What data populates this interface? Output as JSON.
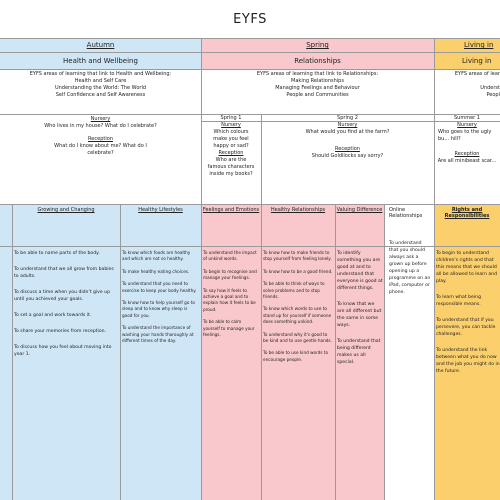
{
  "title": "EYFS",
  "seasons": {
    "autumn": "Autumn",
    "spring": "Spring",
    "living": "Living in"
  },
  "themes": {
    "autumn": "Health and Wellbeing",
    "spring": "Relationships",
    "summer": "Living in"
  },
  "autumn_areas": {
    "heading": "EYFS areas of learning that link to Health and Wellbeing:",
    "items": [
      "Health and Self Care",
      "Understanding the World: The World",
      "Self Confidence and Self Awareness"
    ]
  },
  "spring_areas": {
    "heading": "EYFS areas of learning that link to Relationships:",
    "items": [
      "Making Relationships",
      "Managing Feelings and Behaviour",
      "People and Communities"
    ]
  },
  "summer_areas": {
    "heading": "EYFS areas of lear",
    "items": [
      "Underst",
      "Peopl"
    ]
  },
  "autumn_questions": {
    "nursery_label": "Nursery",
    "nursery_q": "Who lives in my house? What do I celebrate?",
    "reception_label": "Reception",
    "reception_q": "What do I know about me? What do I celebrate?"
  },
  "spring1": {
    "label": "Spring 1",
    "nursery_label": "Nursery",
    "nursery_q": "Which colours make you feel happy or sad?",
    "reception_label": "Reception",
    "reception_q": "Who are the famous characters inside my books?"
  },
  "spring2": {
    "label": "Spring 2",
    "nursery_label": "Nursery",
    "nursery_q": "What would you find at the farm?",
    "reception_label": "Reception",
    "reception_q": "Should Goldilocks say sorry?"
  },
  "summer1": {
    "label": "Summer 1",
    "nursery_label": "Nursery",
    "nursery_q": "Who goes to the ugly bu... hill?",
    "reception_label": "Reception",
    "reception_q": "Are all minibeast scar..."
  },
  "columns": {
    "growing": {
      "head": "Growing and Changing",
      "items": [
        "To be able to name parts of the body.",
        "To understand that we all grow from babies to adults.",
        "To discuss a time when you didn't give up until you achieved your goals.",
        "To set a goal and work towards it.",
        "To share your memories from reception.",
        "To discuss how you feel about moving into year 1."
      ]
    },
    "healthy": {
      "head": "Healthy Lifestyles",
      "items": [
        "To know which foods are healthy and which are not so healthy.",
        "To make healthy eating choices.",
        "To understand that you need to exercise to keep your body healthy.",
        "To know how to help yourself go to sleep and to know why sleep is good for you.",
        "To understand the importance of washing your hands thoroughly at different times of the day."
      ]
    },
    "feelings": {
      "head": "Feelings and Emotions",
      "items": [
        "To understand the impact of unkind words.",
        "To begin to recognise and manage your feelings.",
        "To say how it feels to achieve a goal and to explain how it feels to be proud.",
        "To be able to calm yourself to manage your feelings."
      ]
    },
    "healthyrel": {
      "head": "Healthy Relationships",
      "items": [
        "To know how to make friends to stop yourself from feeling lonely.",
        "To know how to be a good friend.",
        "To be able to think of ways to solve problems and to stop friends.",
        "To know which words to use to stand up for yourself if someone does something unkind.",
        "To understand why it's good to be kind and to use gentle hands.",
        "To be able to use kind words to encourage people."
      ]
    },
    "valuing": {
      "head": "Valuing Difference",
      "items": [
        "To identify something you are good at and to understand that everyone is good at different things.",
        "To know that we are all different but the same in some ways.",
        "To understand that being different makes us all special."
      ]
    },
    "online": {
      "head": "Online Relationships",
      "items": [
        "To understand that you should always ask a grown up before opening up a programme on an iPad, computer or phone."
      ]
    },
    "rights": {
      "head": "Rights and Responsibilities",
      "items": [
        "To begin to understand children's rights and that this means that we should all be allowed to learn and play.",
        "To learn what being responsible means.",
        "To understand that if you persevere, you can tackle challenges.",
        "To understand the link between what you do now and the job you might do in the future."
      ]
    }
  }
}
